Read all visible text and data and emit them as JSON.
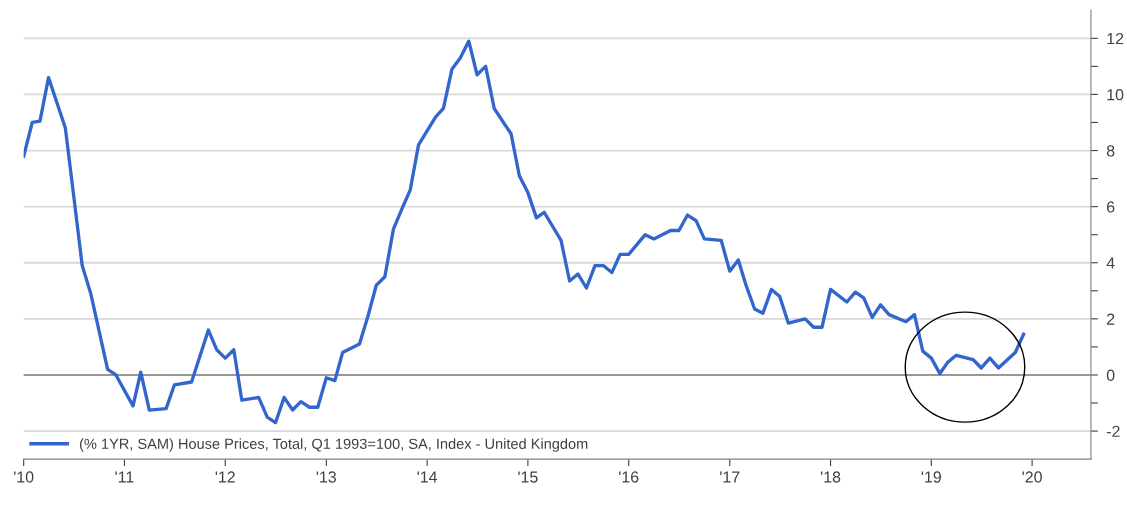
{
  "chart_data": {
    "type": "line",
    "x": [
      "2010-01",
      "2010-02",
      "2010-03",
      "2010-04",
      "2010-06",
      "2010-07",
      "2010-08",
      "2010-09",
      "2010-11",
      "2010-12",
      "2011-02",
      "2011-03",
      "2011-04",
      "2011-06",
      "2011-07",
      "2011-09",
      "2011-11",
      "2011-12",
      "2012-01",
      "2012-02",
      "2012-03",
      "2012-05",
      "2012-06",
      "2012-07",
      "2012-08",
      "2012-09",
      "2012-10",
      "2012-11",
      "2012-12",
      "2013-01",
      "2013-02",
      "2013-03",
      "2013-05",
      "2013-06",
      "2013-07",
      "2013-08",
      "2013-09",
      "2013-10",
      "2013-11",
      "2013-12",
      "2014-02",
      "2014-03",
      "2014-04",
      "2014-05",
      "2014-06",
      "2014-07",
      "2014-08",
      "2014-09",
      "2014-11",
      "2014-12",
      "2015-01",
      "2015-02",
      "2015-03",
      "2015-05",
      "2015-06",
      "2015-07",
      "2015-08",
      "2015-09",
      "2015-10",
      "2015-11",
      "2015-12",
      "2016-01",
      "2016-03",
      "2016-04",
      "2016-06",
      "2016-07",
      "2016-08",
      "2016-09",
      "2016-10",
      "2016-12",
      "2017-01",
      "2017-02",
      "2017-03",
      "2017-04",
      "2017-05",
      "2017-06",
      "2017-07",
      "2017-08",
      "2017-10",
      "2017-11",
      "2017-12",
      "2018-01",
      "2018-03",
      "2018-04",
      "2018-05",
      "2018-06",
      "2018-07",
      "2018-08",
      "2018-10",
      "2018-11",
      "2018-12",
      "2019-01",
      "2019-02",
      "2019-03",
      "2019-04",
      "2019-06",
      "2019-07",
      "2019-08",
      "2019-09",
      "2019-11",
      "2019-12"
    ],
    "series": [
      {
        "name": "(% 1YR, SAM) House Prices, Total, Q1 1993=100, SA, Index - United Kingdom",
        "color": "#3366cc",
        "values": [
          7.8,
          9.0,
          9.05,
          10.6,
          8.8,
          6.4,
          3.9,
          2.9,
          0.2,
          0.0,
          -1.1,
          0.1,
          -1.25,
          -1.2,
          -0.35,
          -0.25,
          1.6,
          0.9,
          0.6,
          0.9,
          -0.9,
          -0.8,
          -1.5,
          -1.7,
          -0.8,
          -1.25,
          -0.95,
          -1.15,
          -1.15,
          -0.1,
          -0.2,
          0.8,
          1.1,
          2.1,
          3.2,
          3.5,
          5.2,
          5.9,
          6.6,
          8.2,
          9.2,
          9.5,
          10.9,
          11.3,
          11.9,
          10.7,
          11.0,
          9.5,
          8.6,
          7.1,
          6.5,
          5.6,
          5.8,
          4.8,
          3.35,
          3.6,
          3.1,
          3.9,
          3.9,
          3.65,
          4.3,
          4.3,
          5.0,
          4.85,
          5.15,
          5.15,
          5.7,
          5.5,
          4.85,
          4.8,
          3.7,
          4.1,
          3.2,
          2.35,
          2.2,
          3.05,
          2.8,
          1.85,
          2.0,
          1.7,
          1.7,
          3.05,
          2.6,
          2.95,
          2.75,
          2.05,
          2.5,
          2.15,
          1.9,
          2.15,
          0.85,
          0.6,
          0.05,
          0.45,
          0.7,
          0.55,
          0.25,
          0.6,
          0.25,
          0.8,
          1.45
        ]
      }
    ],
    "xlim": [
      "2010-01-01",
      "2020-08-01"
    ],
    "xticks": [
      {
        "value": "2010",
        "label": "'10"
      },
      {
        "value": "2011",
        "label": "'11"
      },
      {
        "value": "2012",
        "label": "'12"
      },
      {
        "value": "2013",
        "label": "'13"
      },
      {
        "value": "2014",
        "label": "'14"
      },
      {
        "value": "2015",
        "label": "'15"
      },
      {
        "value": "2016",
        "label": "'16"
      },
      {
        "value": "2017",
        "label": "'17"
      },
      {
        "value": "2018",
        "label": "'18"
      },
      {
        "value": "2019",
        "label": "'19"
      },
      {
        "value": "2020",
        "label": "'20"
      }
    ],
    "ylim": [
      -3,
      13
    ],
    "yticks": [
      -2,
      {
        "value": -1,
        "label": null
      },
      0,
      {
        "value": 1,
        "label": null
      },
      2,
      {
        "value": 3,
        "label": null
      },
      4,
      {
        "value": 5,
        "label": null
      },
      6,
      {
        "value": 7,
        "label": null
      },
      8,
      {
        "value": 9,
        "label": null
      },
      10,
      {
        "value": 11,
        "label": null
      },
      12
    ],
    "ref_lines": [
      {
        "axis": "y",
        "value": 0,
        "color": "#808080"
      }
    ],
    "grid": "y",
    "legend": "bottom left",
    "line_style": "solid",
    "marker": "none"
  }
}
